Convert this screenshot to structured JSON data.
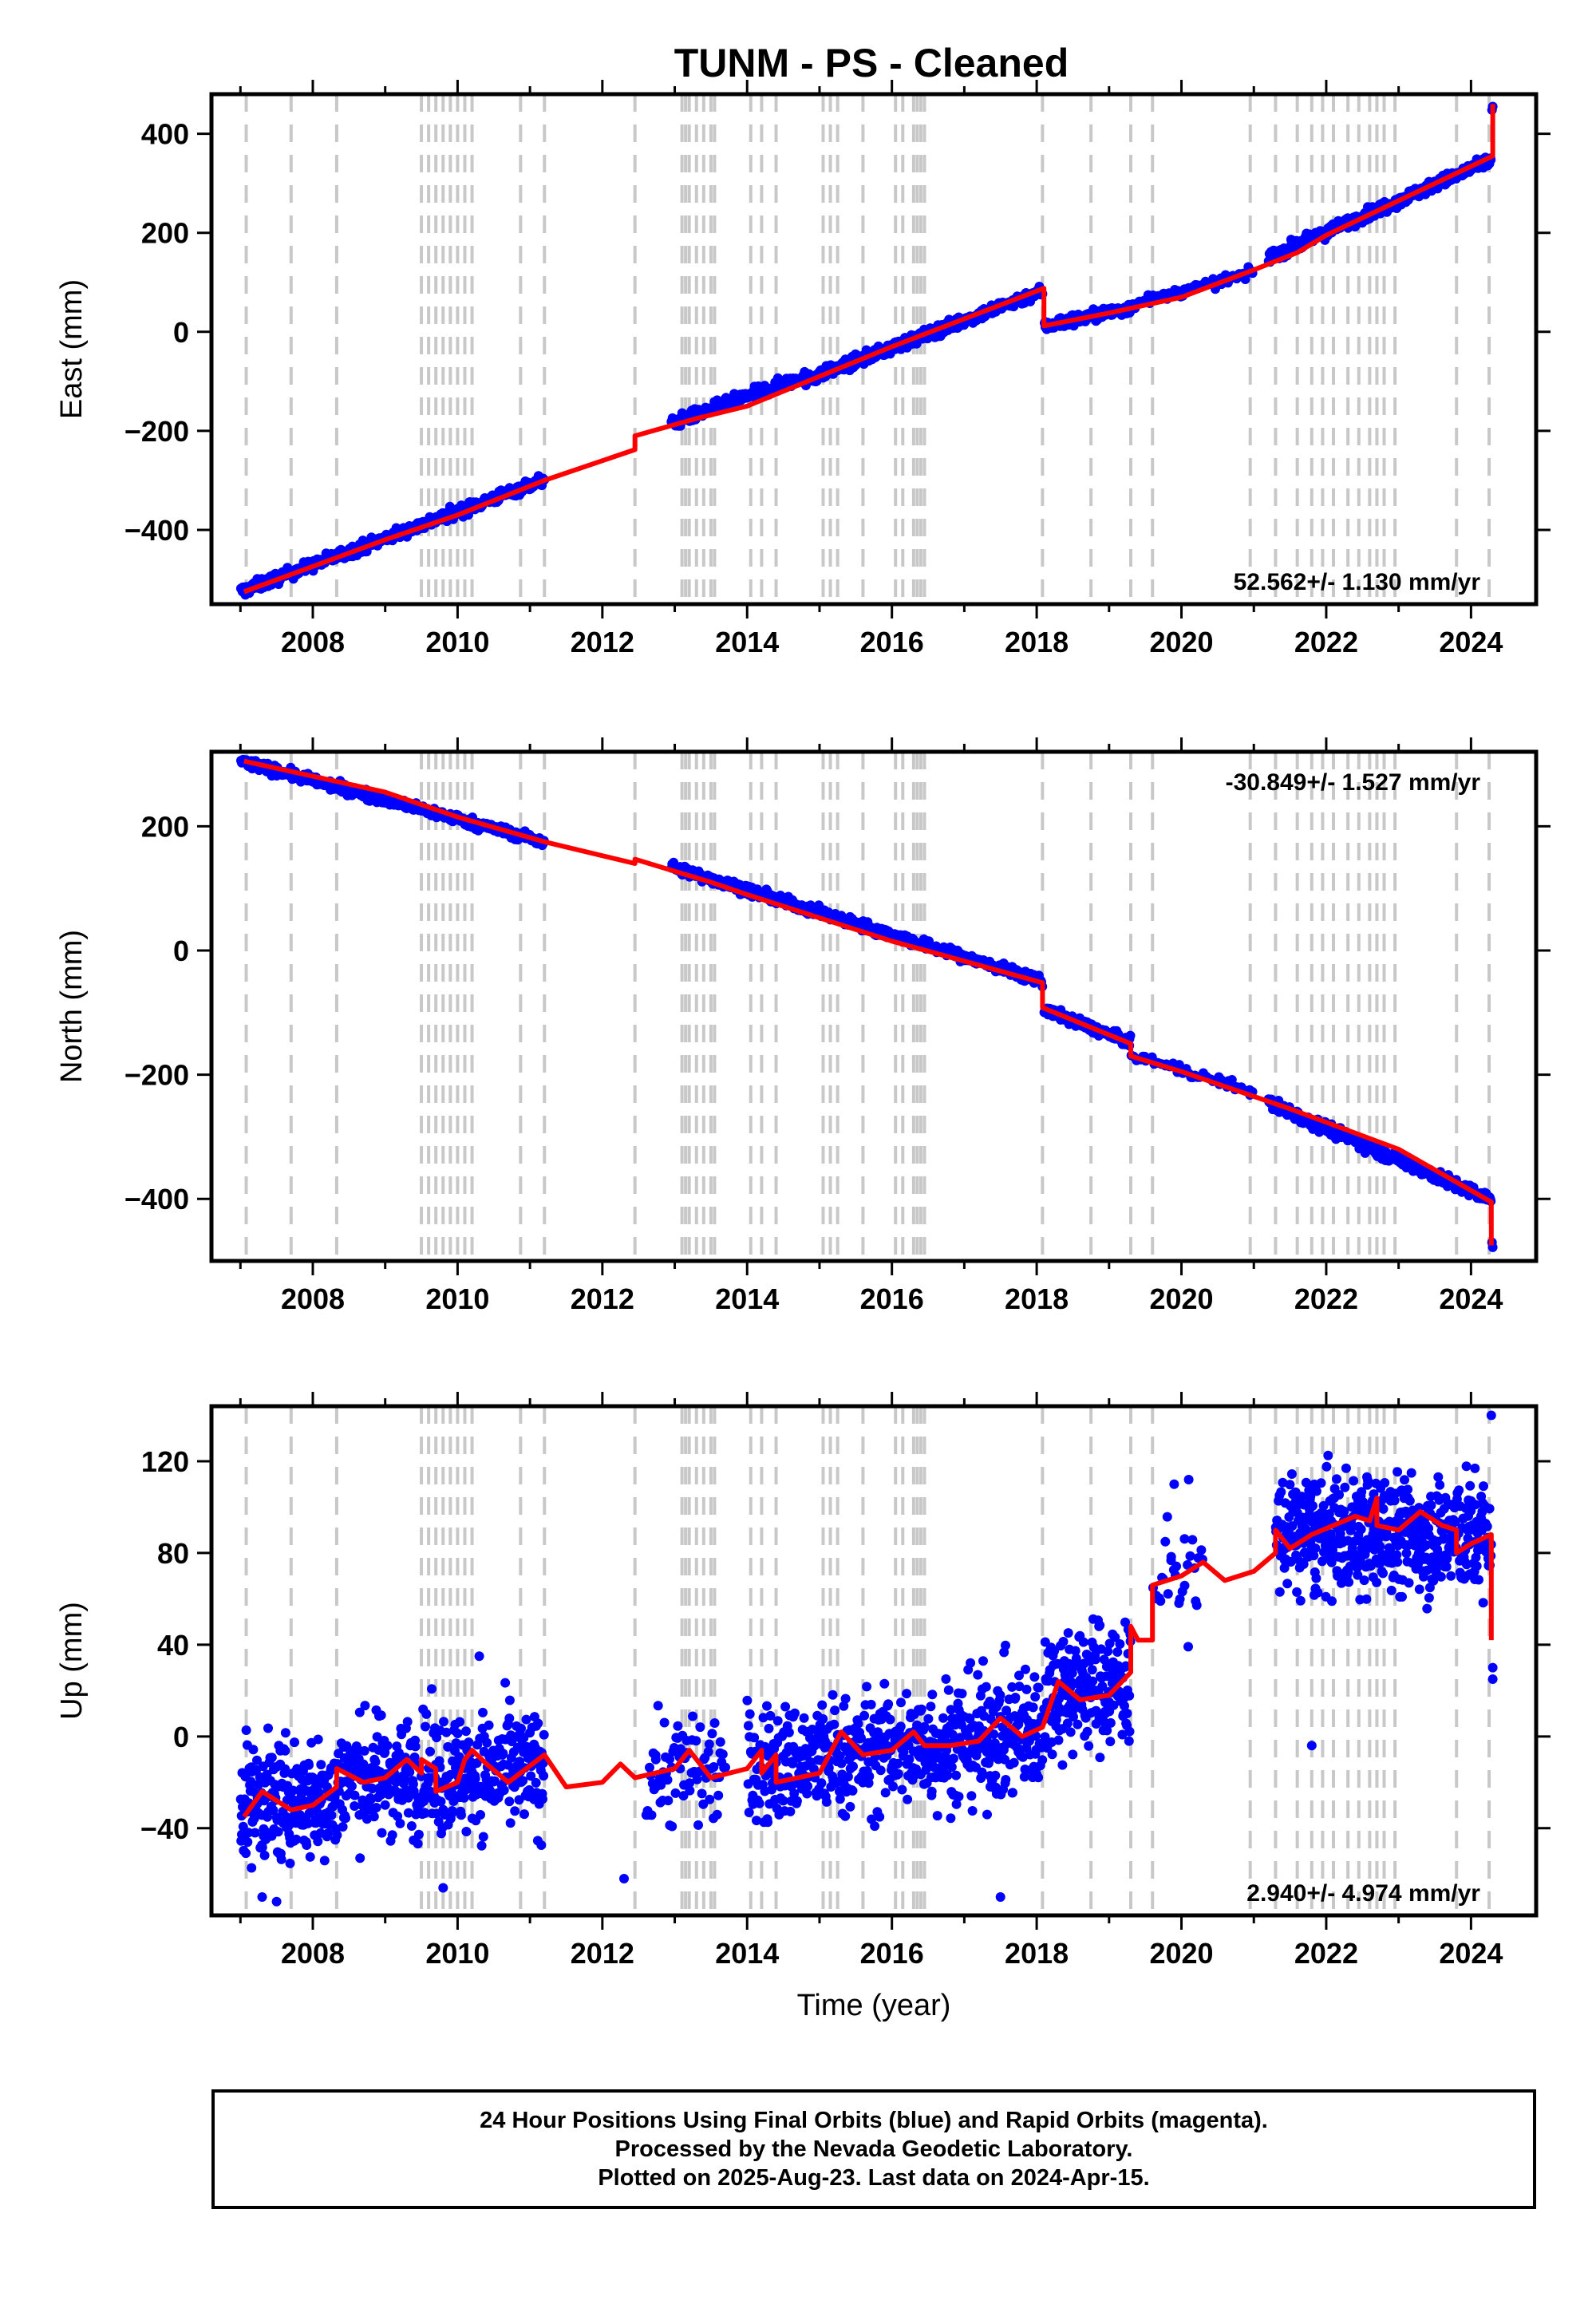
{
  "title": "TUNM  - PS - Cleaned",
  "colors": {
    "points": "#0000ff",
    "model": "#ff0000",
    "events": "#c8c8c8"
  },
  "event_lines": [
    2007.08,
    2007.7,
    2008.33,
    2009.5,
    2009.6,
    2009.7,
    2009.8,
    2009.9,
    2010.0,
    2010.1,
    2010.2,
    2010.87,
    2011.2,
    2012.45,
    2013.1,
    2013.15,
    2013.2,
    2013.3,
    2013.4,
    2013.5,
    2013.55,
    2014.05,
    2014.2,
    2014.4,
    2015.05,
    2015.15,
    2015.25,
    2015.6,
    2016.05,
    2016.15,
    2016.3,
    2016.35,
    2016.4,
    2016.45,
    2018.08,
    2018.75,
    2019.3,
    2019.6,
    2020.95,
    2021.3,
    2021.6,
    2021.8,
    2021.95,
    2022.1,
    2022.3,
    2022.45,
    2022.6,
    2022.7,
    2022.8,
    2022.95,
    2023.8,
    2024.25
  ],
  "x_ticks": [
    2008,
    2010,
    2012,
    2014,
    2016,
    2018,
    2020,
    2022,
    2024
  ],
  "chart_data": [
    {
      "type": "scatter",
      "ylabel": "East (mm)",
      "xlabel": "",
      "xlim": [
        2006.6,
        2024.9
      ],
      "ylim": [
        -550,
        480
      ],
      "y_ticks": [
        400,
        200,
        0,
        -200,
        -400
      ],
      "rate": "52.562+/- 1.130 mm/yr",
      "rate_position": "bottom-right",
      "model_line": [
        [
          2007.05,
          -525
        ],
        [
          2009.0,
          -420
        ],
        [
          2010.0,
          -370
        ],
        [
          2011.2,
          -300
        ],
        [
          2012.45,
          -238
        ],
        [
          2012.45,
          -210
        ],
        [
          2013.3,
          -175
        ],
        [
          2014.0,
          -150
        ],
        [
          2016.0,
          -30
        ],
        [
          2018.1,
          88
        ],
        [
          2018.1,
          12
        ],
        [
          2019.0,
          38
        ],
        [
          2020.0,
          70
        ],
        [
          2021.0,
          125
        ],
        [
          2021.6,
          160
        ],
        [
          2022.0,
          195
        ],
        [
          2023.0,
          265
        ],
        [
          2024.3,
          355
        ],
        [
          2024.3,
          460
        ]
      ],
      "series": [
        {
          "name": "",
          "segments": [
            {
              "start": 2007.0,
              "end": 2011.2,
              "y0": -525,
              "slope": 54,
              "noise": 6,
              "n": 420
            },
            {
              "start": 2012.95,
              "end": 2014.8,
              "y0": -185,
              "slope": 52,
              "noise": 6,
              "n": 200
            },
            {
              "start": 2014.8,
              "end": 2018.08,
              "y0": -98,
              "slope": 55,
              "noise": 6,
              "n": 360
            },
            {
              "start": 2018.1,
              "end": 2019.3,
              "y0": 12,
              "slope": 30,
              "noise": 6,
              "n": 130
            },
            {
              "start": 2019.3,
              "end": 2021.0,
              "y0": 55,
              "slope": 38,
              "noise": 5,
              "n": 60
            },
            {
              "start": 2021.2,
              "end": 2024.28,
              "y0": 150,
              "slope": 64,
              "noise": 6,
              "n": 340
            }
          ],
          "outliers": [
            [
              2024.3,
              455
            ],
            [
              2024.29,
              448
            ]
          ]
        }
      ]
    },
    {
      "type": "scatter",
      "ylabel": "North (mm)",
      "xlabel": "",
      "xlim": [
        2006.6,
        2024.9
      ],
      "ylim": [
        -500,
        320
      ],
      "y_ticks": [
        200,
        0,
        -200,
        -400
      ],
      "rate": "-30.849+/- 1.527 mm/yr",
      "rate_position": "top-right",
      "model_line": [
        [
          2007.05,
          305
        ],
        [
          2009.0,
          255
        ],
        [
          2010.0,
          215
        ],
        [
          2011.2,
          175
        ],
        [
          2012.45,
          140
        ],
        [
          2012.45,
          147
        ],
        [
          2013.5,
          110
        ],
        [
          2014.0,
          90
        ],
        [
          2016.0,
          15
        ],
        [
          2018.08,
          -52
        ],
        [
          2018.08,
          -92
        ],
        [
          2019.3,
          -150
        ],
        [
          2019.3,
          -170
        ],
        [
          2020.0,
          -195
        ],
        [
          2021.5,
          -255
        ],
        [
          2023.0,
          -320
        ],
        [
          2024.28,
          -405
        ],
        [
          2024.28,
          -475
        ]
      ],
      "series": [
        {
          "name": "",
          "segments": [
            {
              "start": 2007.0,
              "end": 2011.2,
              "y0": 305,
              "slope": -31,
              "noise": 4,
              "n": 420
            },
            {
              "start": 2012.95,
              "end": 2018.08,
              "y0": 135,
              "slope": -36,
              "noise": 4,
              "n": 560
            },
            {
              "start": 2018.1,
              "end": 2019.3,
              "y0": -95,
              "slope": -45,
              "noise": 4,
              "n": 130
            },
            {
              "start": 2019.3,
              "end": 2021.0,
              "y0": -168,
              "slope": -35,
              "noise": 4,
              "n": 60
            },
            {
              "start": 2021.2,
              "end": 2024.28,
              "y0": -245,
              "slope": -51,
              "noise": 5,
              "n": 340
            }
          ],
          "outliers": [
            [
              2024.3,
              -478
            ],
            [
              2024.29,
              -470
            ]
          ]
        }
      ]
    },
    {
      "type": "scatter",
      "ylabel": "Up (mm)",
      "xlabel": "Time (year)",
      "xlim": [
        2006.6,
        2024.9
      ],
      "ylim": [
        -78,
        144
      ],
      "y_ticks": [
        120,
        80,
        40,
        0,
        -40
      ],
      "rate": "2.940+/- 4.974 mm/yr",
      "rate_position": "bottom-right",
      "model_line": [
        [
          2007.05,
          -35
        ],
        [
          2007.3,
          -24
        ],
        [
          2007.7,
          -32
        ],
        [
          2008.0,
          -30
        ],
        [
          2008.33,
          -22
        ],
        [
          2008.33,
          -14
        ],
        [
          2008.7,
          -20
        ],
        [
          2009.0,
          -18
        ],
        [
          2009.3,
          -10
        ],
        [
          2009.5,
          -16
        ],
        [
          2009.5,
          -10
        ],
        [
          2009.7,
          -14
        ],
        [
          2009.7,
          -24
        ],
        [
          2010.0,
          -20
        ],
        [
          2010.1,
          -10
        ],
        [
          2010.2,
          -6
        ],
        [
          2010.4,
          -12
        ],
        [
          2010.7,
          -20
        ],
        [
          2011.2,
          -8
        ],
        [
          2011.5,
          -22
        ],
        [
          2012.0,
          -20
        ],
        [
          2012.25,
          -12
        ],
        [
          2012.45,
          -18
        ],
        [
          2013.0,
          -14
        ],
        [
          2013.2,
          -6
        ],
        [
          2013.5,
          -18
        ],
        [
          2014.0,
          -14
        ],
        [
          2014.2,
          -6
        ],
        [
          2014.2,
          -16
        ],
        [
          2014.4,
          -8
        ],
        [
          2014.4,
          -20
        ],
        [
          2015.0,
          -16
        ],
        [
          2015.3,
          2
        ],
        [
          2015.6,
          -8
        ],
        [
          2016.0,
          -6
        ],
        [
          2016.3,
          2
        ],
        [
          2016.45,
          -4
        ],
        [
          2016.8,
          -4
        ],
        [
          2017.2,
          -2
        ],
        [
          2017.5,
          8
        ],
        [
          2017.8,
          0
        ],
        [
          2018.08,
          4
        ],
        [
          2018.3,
          24
        ],
        [
          2018.6,
          16
        ],
        [
          2019.0,
          18
        ],
        [
          2019.3,
          28
        ],
        [
          2019.3,
          48
        ],
        [
          2019.4,
          42
        ],
        [
          2019.6,
          42
        ],
        [
          2019.6,
          66
        ],
        [
          2020.0,
          70
        ],
        [
          2020.3,
          76
        ],
        [
          2020.6,
          68
        ],
        [
          2021.0,
          72
        ],
        [
          2021.3,
          80
        ],
        [
          2021.3,
          90
        ],
        [
          2021.5,
          82
        ],
        [
          2021.8,
          88
        ],
        [
          2022.1,
          92
        ],
        [
          2022.4,
          96
        ],
        [
          2022.6,
          94
        ],
        [
          2022.7,
          104
        ],
        [
          2022.7,
          92
        ],
        [
          2023.0,
          90
        ],
        [
          2023.3,
          98
        ],
        [
          2023.6,
          92
        ],
        [
          2023.8,
          90
        ],
        [
          2023.8,
          80
        ],
        [
          2024.0,
          84
        ],
        [
          2024.28,
          88
        ],
        [
          2024.28,
          42
        ]
      ],
      "series": [
        {
          "name": "",
          "segments": [
            {
              "start": 2007.0,
              "end": 2008.33,
              "y0": -28,
              "slope": 0,
              "noise": 13,
              "n": 220
            },
            {
              "start": 2008.33,
              "end": 2011.2,
              "y0": -18,
              "slope": 1,
              "noise": 13,
              "n": 420
            },
            {
              "start": 2012.6,
              "end": 2013.7,
              "y0": -14,
              "slope": 0,
              "noise": 13,
              "n": 80
            },
            {
              "start": 2014.0,
              "end": 2016.45,
              "y0": -14,
              "slope": 4,
              "noise": 13,
              "n": 330
            },
            {
              "start": 2016.45,
              "end": 2018.08,
              "y0": -4,
              "slope": 4,
              "noise": 14,
              "n": 260
            },
            {
              "start": 2018.1,
              "end": 2019.3,
              "y0": 20,
              "slope": 4,
              "noise": 14,
              "n": 200
            },
            {
              "start": 2019.6,
              "end": 2020.3,
              "y0": 70,
              "slope": 0,
              "noise": 12,
              "n": 30
            },
            {
              "start": 2021.3,
              "end": 2024.28,
              "y0": 88,
              "slope": 0,
              "noise": 13,
              "n": 540
            }
          ],
          "outliers": [
            [
              2007.5,
              -72
            ],
            [
              2007.3,
              -70
            ],
            [
              2009.8,
              -66
            ],
            [
              2010.3,
              35
            ],
            [
              2017.5,
              -70
            ],
            [
              2021.8,
              -4
            ],
            [
              2019.9,
              110
            ],
            [
              2020.1,
              112
            ],
            [
              2012.3,
              -62
            ],
            [
              2024.3,
              25
            ],
            [
              2024.3,
              30
            ],
            [
              2024.28,
              140
            ]
          ]
        }
      ]
    }
  ],
  "footer": {
    "line1": "24 Hour Positions Using Final Orbits (blue) and Rapid Orbits (magenta).",
    "line2": "Processed by the Nevada Geodetic Laboratory.",
    "line3": "Plotted on 2025-Aug-23. Last data on 2024-Apr-15."
  }
}
